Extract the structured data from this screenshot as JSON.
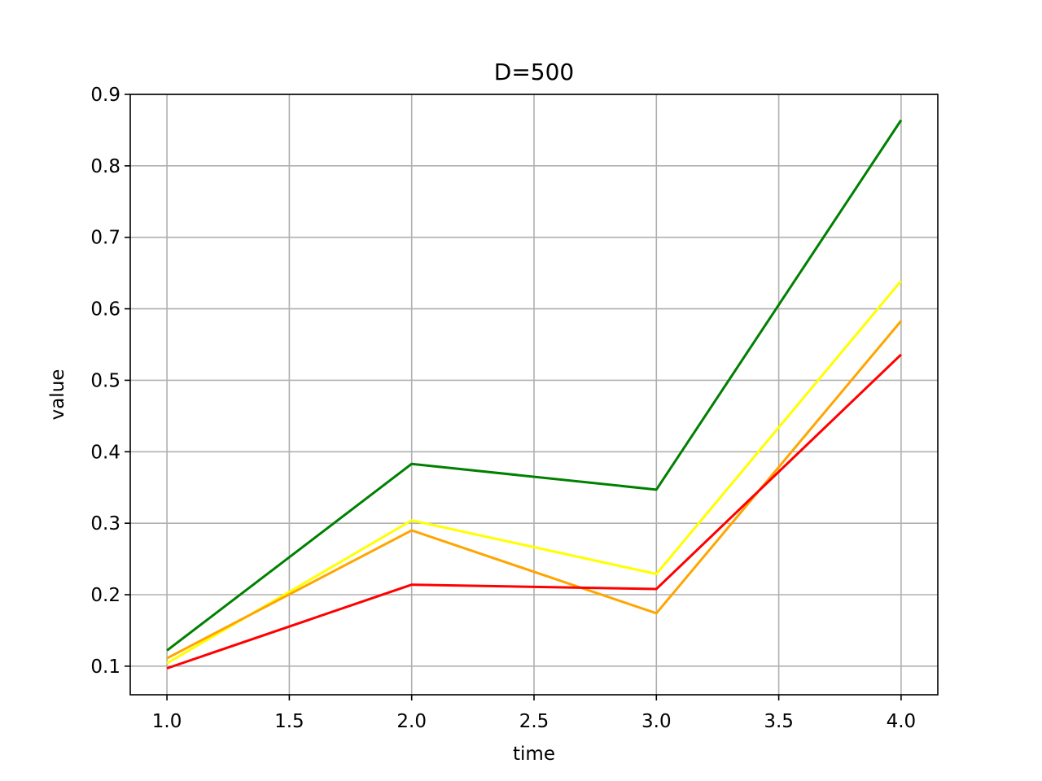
{
  "chart_data": {
    "type": "line",
    "title": "D=500",
    "xlabel": "time",
    "ylabel": "value",
    "xlim": [
      0.85,
      4.15
    ],
    "ylim": [
      0.06,
      0.9
    ],
    "xticks": [
      1.0,
      1.5,
      2.0,
      2.5,
      3.0,
      3.5,
      4.0
    ],
    "xtick_labels": [
      "1.0",
      "1.5",
      "2.0",
      "2.5",
      "3.0",
      "3.5",
      "4.0"
    ],
    "yticks": [
      0.1,
      0.2,
      0.3,
      0.4,
      0.5,
      0.6,
      0.7,
      0.8,
      0.9
    ],
    "ytick_labels": [
      "0.1",
      "0.2",
      "0.3",
      "0.4",
      "0.5",
      "0.6",
      "0.7",
      "0.8",
      "0.9"
    ],
    "grid": true,
    "x": [
      1.0,
      2.0,
      3.0,
      4.0
    ],
    "series": [
      {
        "color": "#008000",
        "values": [
          0.122,
          0.383,
          0.347,
          0.864
        ]
      },
      {
        "color": "#ffff00",
        "values": [
          0.104,
          0.304,
          0.229,
          0.639
        ]
      },
      {
        "color": "#ffa500",
        "values": [
          0.111,
          0.29,
          0.174,
          0.583
        ]
      },
      {
        "color": "#ff0000",
        "values": [
          0.097,
          0.214,
          0.208,
          0.536
        ]
      }
    ]
  }
}
